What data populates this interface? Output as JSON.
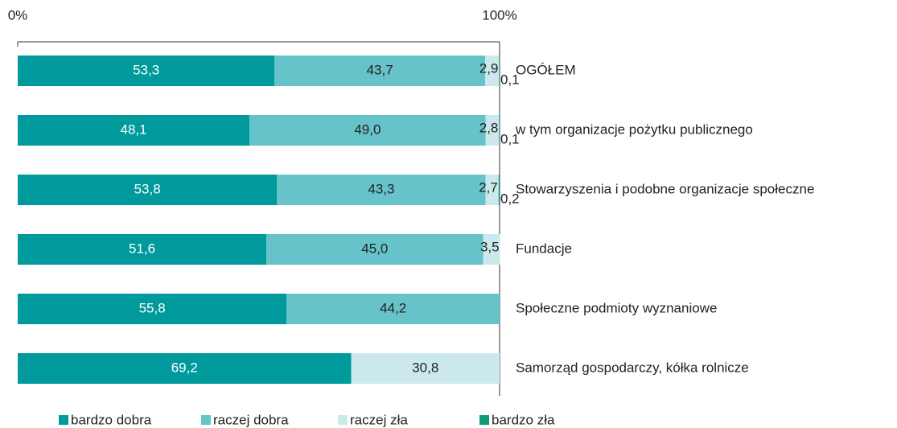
{
  "chart_data": {
    "type": "stacked-bar-horizontal",
    "categories": [
      "OGÓŁEM",
      "w tym organizacje pożytku publicznego",
      "Stowarzyszenia i podobne organizacje społeczne",
      "Fundacje",
      "Społeczne podmioty wyznaniowe",
      "Samorząd gospodarczy, kółka rolnicze"
    ],
    "series": [
      {
        "name": "bardzo dobra",
        "color": "#009a9c",
        "values": [
          53.3,
          48.1,
          53.8,
          51.6,
          55.8,
          69.2
        ],
        "value_labels": [
          "53,3",
          "48,1",
          "53,8",
          "51,6",
          "55,8",
          "69,2"
        ]
      },
      {
        "name": "raczej dobra",
        "color": "#66c3c9",
        "values": [
          43.7,
          49.0,
          43.3,
          45.0,
          44.2,
          null
        ],
        "value_labels": [
          "43,7",
          "49,0",
          "43,3",
          "45,0",
          "44,2",
          null
        ]
      },
      {
        "name": "raczej zła",
        "color": "#cbe9ec",
        "values": [
          2.9,
          2.8,
          2.7,
          3.5,
          null,
          30.8
        ],
        "value_labels": [
          "2,9",
          "2,8",
          "2,7",
          "3,5",
          null,
          "30,8"
        ]
      },
      {
        "name": "bardzo zła",
        "color": "#0c9a78",
        "values": [
          0.1,
          0.1,
          0.2,
          null,
          null,
          null
        ],
        "value_labels": [
          "0,1",
          "0,1",
          "0,2",
          null,
          null,
          null
        ]
      }
    ],
    "xlim": [
      0,
      100
    ],
    "xticks": [
      {
        "value": 0,
        "label": "0%"
      },
      {
        "value": 100,
        "label": "100%"
      }
    ]
  }
}
